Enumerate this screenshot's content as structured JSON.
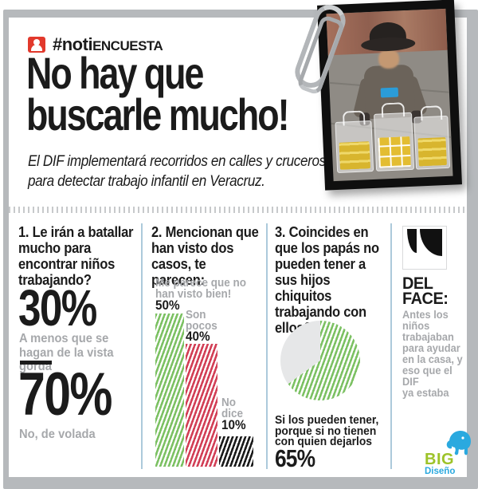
{
  "header": {
    "tag_prefix": "#noti",
    "tag_suffix": "ENCUESTA",
    "title": "No hay que\nbuscarle mucho!",
    "subtitle": "El DIF implementará recorridos en calles y cruceros\npara detectar trabajo infantil en Veracruz."
  },
  "questions": {
    "q1": {
      "title": "1. Le irán a batallar\nmucho para\nencontrar niños\ntrabajando?",
      "answer1_value": "30%",
      "answer1_label": "A menos que se\nhagan de la vista\ngorda",
      "answer2_value": "70%",
      "answer2_label": "No, de volada"
    },
    "q2": {
      "title": "2. Mencionan que\nhan visto dos\ncasos, te parecen:",
      "bar1_label": "Me parece que no\nhan visto bien!",
      "bar1_value": "50%",
      "bar2_label": "Son\npocos",
      "bar2_value": "40%",
      "bar3_label": "No\ndice",
      "bar3_value": "10%"
    },
    "q3": {
      "title": "3. Coincides en\nque los papás no\npueden tener a\nsus hijos chiquitos\ntrabajando con\nellos?",
      "answer_label": "Si los pueden tener,\nporque si no tienen\ncon quien dejarlos",
      "answer_value": "65%"
    }
  },
  "face": {
    "heading": "DEL\nFACE:",
    "quote": "Antes los\nniños\ntrabajaban\npara ayudar\nen la casa, y\neso que el DIF\nya estaba"
  },
  "logo": {
    "big": "BIG",
    "diseno": "Diseño"
  },
  "colors": {
    "accent_red": "#e2392c",
    "green": "#7cc163",
    "crimson": "#d23f56",
    "black": "#1b1b1b",
    "gray_text": "#a6a8ab",
    "divider_blue": "#accadb",
    "frame_gray": "#b6b9bc",
    "pie_gray": "#e6e7e8",
    "logo_green": "#9dc329",
    "logo_blue": "#2aa9df"
  },
  "chart_data": [
    {
      "type": "bar",
      "title": "2. Mencionan que han visto dos casos, te parecen:",
      "categories": [
        "Me parece que no han visto bien!",
        "Son pocos",
        "No dice"
      ],
      "values": [
        50,
        40,
        10
      ],
      "unit": "%",
      "colors": [
        "#7cc163",
        "#d23f56",
        "#1b1b1b"
      ],
      "style": "diagonal-striped",
      "ylim": [
        0,
        50
      ],
      "grid": false,
      "legend": "none"
    },
    {
      "type": "pie",
      "title": "3. Coincides en que los papás no pueden tener a sus hijos chiquitos trabajando con ellos?",
      "slices": [
        {
          "label": "Si los pueden tener, porque si no tienen con quien dejarlos",
          "value": 65,
          "color": "#7cc163"
        },
        {
          "label": "",
          "value": 35,
          "color": "#e6e7e8"
        }
      ],
      "start_angle_deg": 0,
      "style": "diagonal-striped-main-slice",
      "legend": "none"
    },
    {
      "type": "big-number",
      "title": "1. Le irán a batallar mucho para encontrar niños trabajando?",
      "unit": "%",
      "values": [
        {
          "value": 30,
          "label": "A menos que se hagan de la vista gorda"
        },
        {
          "value": 70,
          "label": "No, de volada"
        }
      ]
    }
  ]
}
